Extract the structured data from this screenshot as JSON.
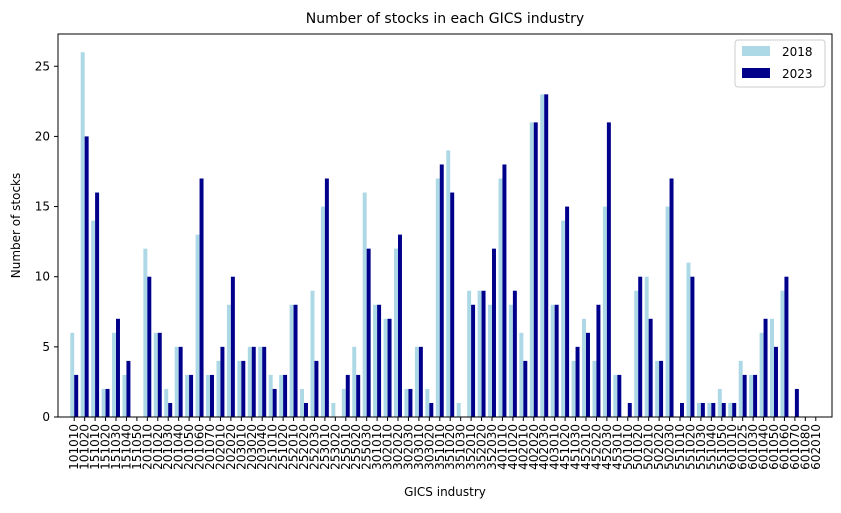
{
  "chart_data": {
    "type": "bar",
    "title": "Number of stocks in each GICS industry",
    "xlabel": "GICS industry",
    "ylabel": "Number of stocks",
    "ylim": [
      0,
      27.3
    ],
    "yticks": [
      0,
      5,
      10,
      15,
      20,
      25
    ],
    "grid": false,
    "legend_position": "top-right",
    "categories": [
      "101010",
      "101020",
      "151010",
      "151020",
      "151030",
      "151040",
      "151050",
      "201010",
      "201020",
      "201030",
      "201040",
      "201050",
      "201060",
      "201070",
      "202010",
      "202020",
      "203010",
      "203020",
      "203040",
      "251010",
      "251020",
      "252010",
      "252020",
      "252030",
      "253010",
      "253020",
      "255010",
      "255020",
      "255030",
      "301010",
      "302010",
      "302020",
      "302030",
      "303010",
      "303020",
      "351010",
      "351020",
      "351030",
      "352010",
      "352020",
      "352030",
      "401010",
      "401020",
      "402010",
      "402020",
      "402030",
      "403010",
      "451020",
      "451030",
      "452010",
      "452020",
      "452030",
      "453010",
      "501010",
      "501020",
      "502010",
      "502020",
      "502030",
      "551010",
      "551020",
      "551030",
      "551040",
      "551050",
      "601010",
      "601025",
      "601030",
      "601040",
      "601050",
      "601060",
      "601070",
      "601080",
      "602010"
    ],
    "series": [
      {
        "name": "2018",
        "color": "#add8e6",
        "values": [
          6,
          26,
          14,
          2,
          6,
          3,
          0,
          12,
          6,
          2,
          5,
          3,
          13,
          3,
          4,
          8,
          4,
          5,
          5,
          3,
          3,
          8,
          2,
          9,
          15,
          1,
          2,
          5,
          16,
          8,
          7,
          12,
          2,
          5,
          2,
          17,
          19,
          1,
          9,
          9,
          8,
          17,
          8,
          6,
          21,
          23,
          8,
          14,
          4,
          7,
          4,
          15,
          3,
          0,
          9,
          10,
          4,
          15,
          0,
          11,
          1,
          1,
          2,
          1,
          4,
          3,
          6,
          7,
          9,
          0,
          0,
          0
        ]
      },
      {
        "name": "2023",
        "color": "#00008b",
        "values": [
          3,
          20,
          16,
          2,
          7,
          4,
          0,
          10,
          6,
          1,
          5,
          3,
          17,
          3,
          5,
          10,
          4,
          5,
          5,
          2,
          3,
          8,
          1,
          4,
          17,
          0,
          3,
          3,
          12,
          8,
          7,
          13,
          2,
          5,
          1,
          18,
          16,
          0,
          8,
          9,
          12,
          18,
          9,
          4,
          21,
          23,
          8,
          15,
          5,
          6,
          8,
          21,
          3,
          1,
          10,
          7,
          4,
          17,
          1,
          10,
          1,
          1,
          1,
          1,
          3,
          3,
          7,
          5,
          10,
          2,
          0,
          0
        ]
      }
    ]
  }
}
